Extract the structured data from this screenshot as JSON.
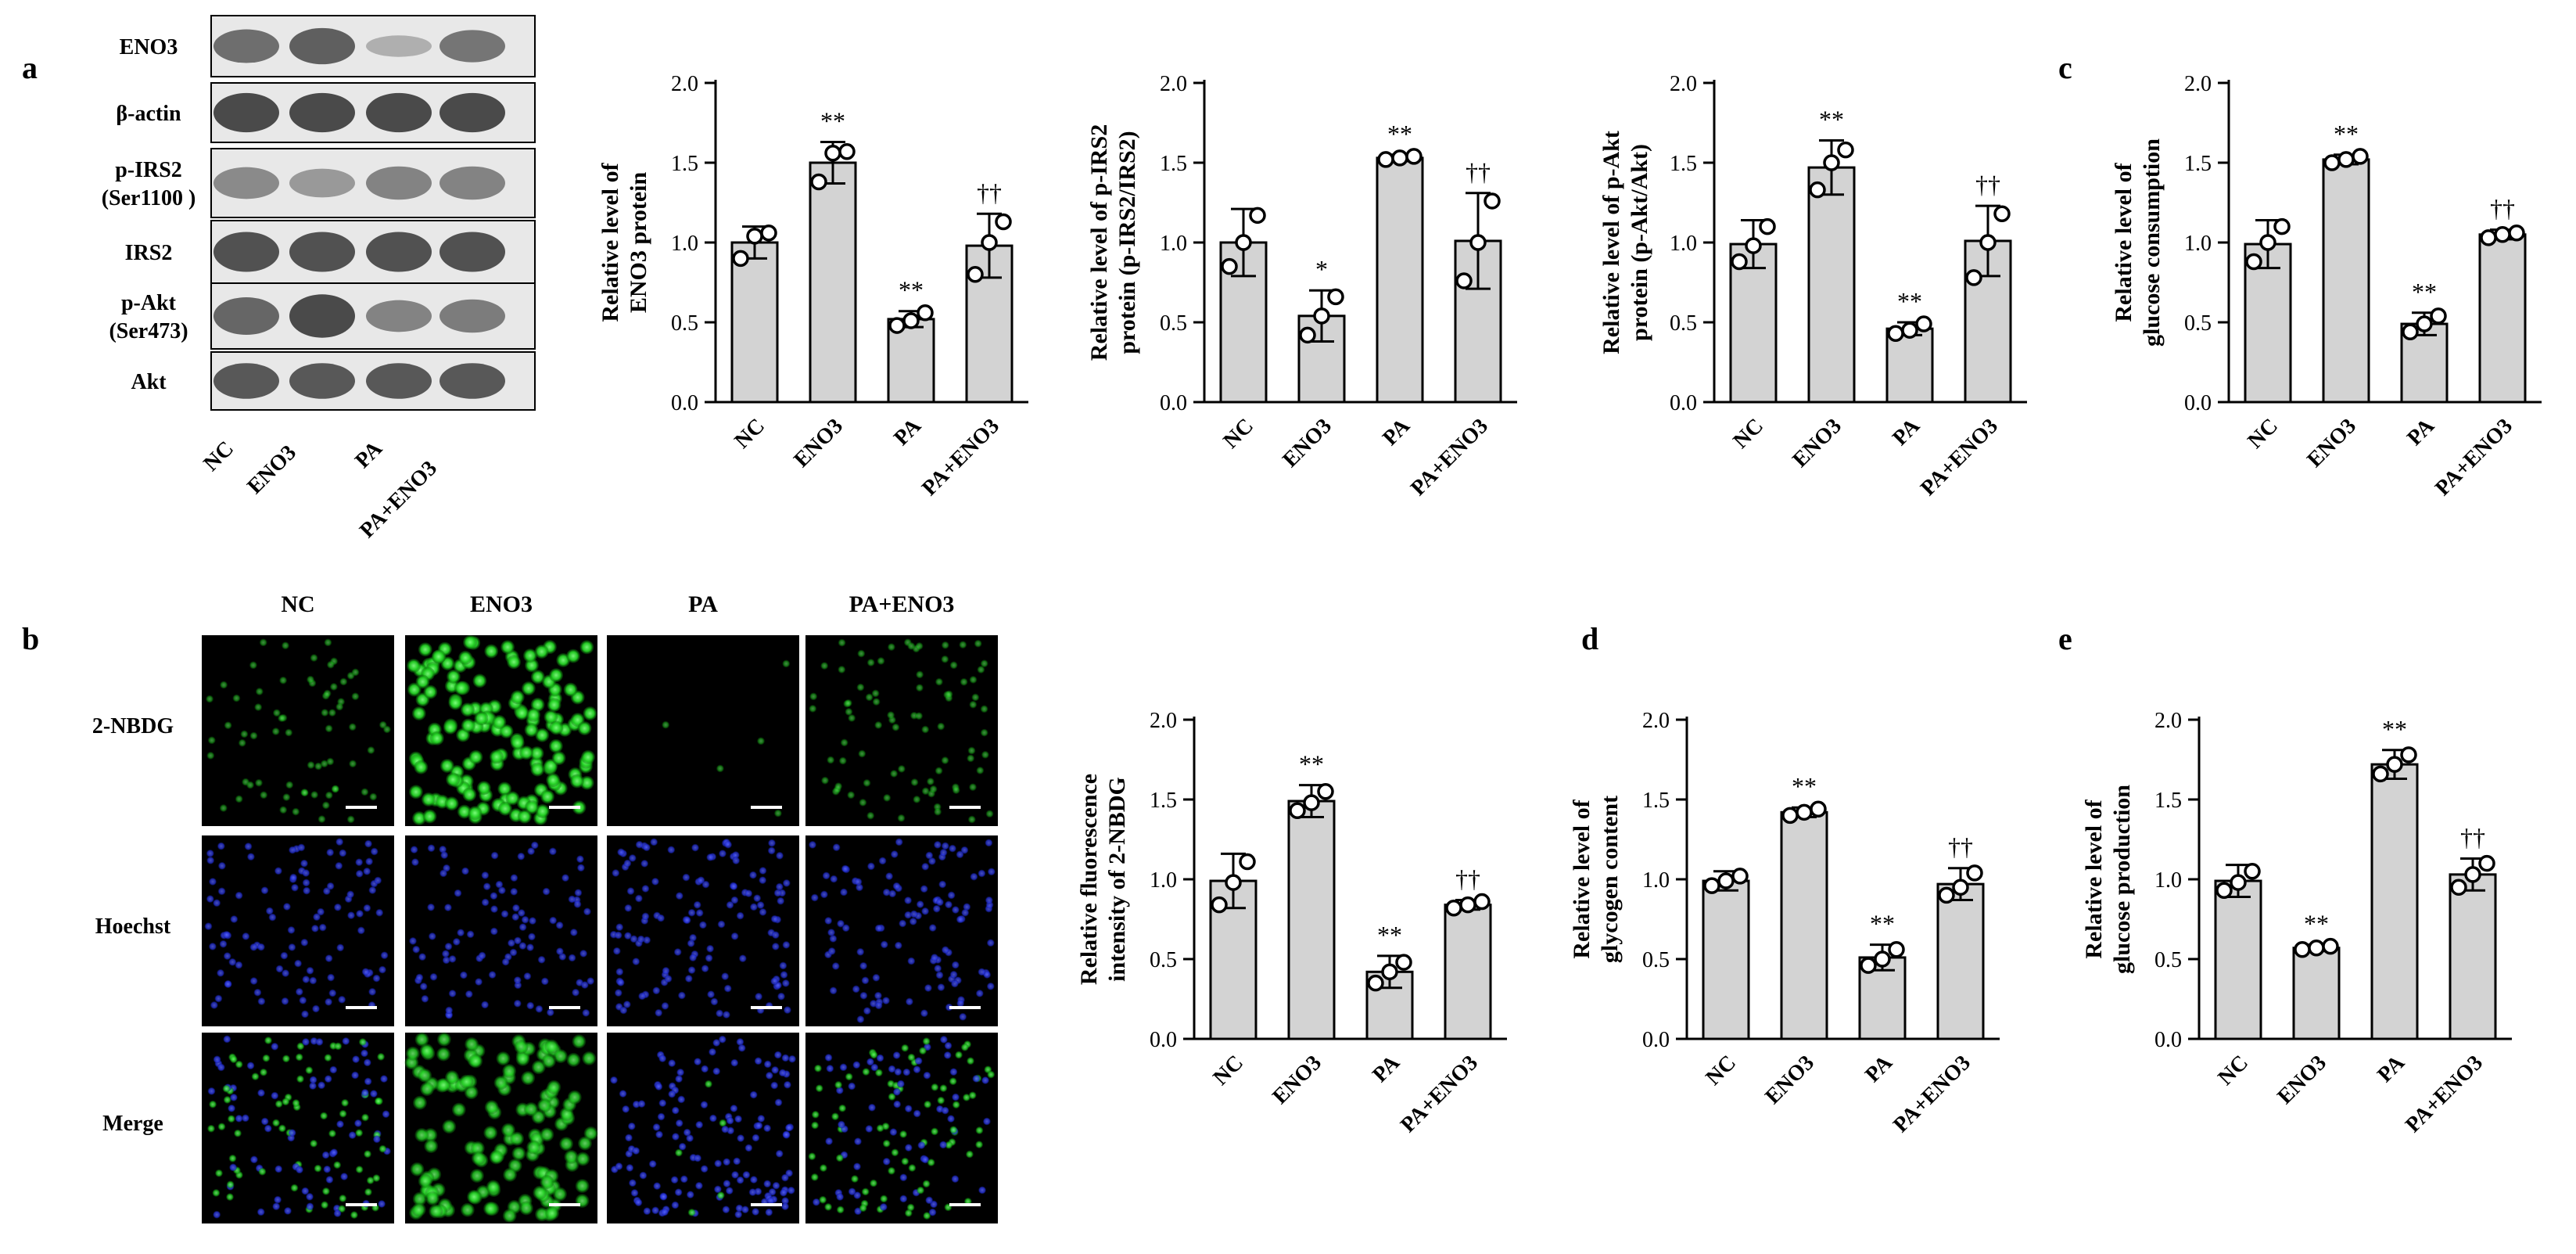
{
  "panel_letters": [
    "a",
    "b",
    "c",
    "d",
    "e"
  ],
  "western_blot": {
    "rows": [
      "ENO3",
      "β-actin",
      "p-IRS2\n(Ser1100 )",
      "IRS2",
      "p-Akt\n(Ser473)",
      "Akt"
    ],
    "lanes": [
      "NC",
      "ENO3",
      "PA",
      "PA+ENO3"
    ]
  },
  "microscopy": {
    "columns": [
      "NC",
      "ENO3",
      "PA",
      "PA+ENO3"
    ],
    "rows": [
      "2-NBDG",
      "Hoechst",
      "Merge"
    ]
  },
  "colors": {
    "bar_fill": "#d3d3d3",
    "stroke": "#000000",
    "green_channel": "#2fd62f",
    "blue_channel": "#2a3cf0"
  },
  "chart_data": [
    {
      "id": "eno3",
      "type": "bar",
      "categories": [
        "NC",
        "ENO3",
        "PA",
        "PA+ENO3"
      ],
      "values": [
        1.0,
        1.5,
        0.52,
        0.98
      ],
      "errors": [
        0.1,
        0.13,
        0.05,
        0.2
      ],
      "points": [
        [
          0.9,
          1.04,
          1.06
        ],
        [
          1.38,
          1.56,
          1.57
        ],
        [
          0.48,
          0.51,
          0.56
        ],
        [
          0.8,
          1.0,
          1.13
        ]
      ],
      "significance": [
        "",
        "**",
        "**",
        "††"
      ],
      "ylabel": "Relative level of\nENO3 protein",
      "ylim": [
        0,
        2.0
      ],
      "yticks": [
        "0.0",
        "0.5",
        "1.0",
        "1.5",
        "2.0"
      ]
    },
    {
      "id": "pirs2",
      "type": "bar",
      "categories": [
        "NC",
        "ENO3",
        "PA",
        "PA+ENO3"
      ],
      "values": [
        1.0,
        0.54,
        1.53,
        1.01
      ],
      "errors": [
        0.21,
        0.16,
        0.02,
        0.3
      ],
      "points": [
        [
          0.85,
          1.0,
          1.17
        ],
        [
          0.42,
          0.54,
          0.66
        ],
        [
          1.52,
          1.53,
          1.54
        ],
        [
          0.76,
          1.0,
          1.26
        ]
      ],
      "significance": [
        "",
        "*",
        "**",
        "††"
      ],
      "ylabel": "Relative level of p-IRS2\nprotein (p-IRS2/IRS2)",
      "ylim": [
        0,
        2.0
      ],
      "yticks": [
        "0.0",
        "0.5",
        "1.0",
        "1.5",
        "2.0"
      ]
    },
    {
      "id": "pakt",
      "type": "bar",
      "categories": [
        "NC",
        "ENO3",
        "PA",
        "PA+ENO3"
      ],
      "values": [
        0.99,
        1.47,
        0.46,
        1.01
      ],
      "errors": [
        0.15,
        0.17,
        0.04,
        0.22
      ],
      "points": [
        [
          0.88,
          0.98,
          1.1
        ],
        [
          1.33,
          1.5,
          1.58
        ],
        [
          0.43,
          0.45,
          0.49
        ],
        [
          0.78,
          1.0,
          1.18
        ]
      ],
      "significance": [
        "",
        "**",
        "**",
        "††"
      ],
      "ylabel": "Relative level of p-Akt\nprotein (p-Akt/Akt)",
      "ylim": [
        0,
        2.0
      ],
      "yticks": [
        "0.0",
        "0.5",
        "1.0",
        "1.5",
        "2.0"
      ]
    },
    {
      "id": "glucose-consumption",
      "type": "bar",
      "categories": [
        "NC",
        "ENO3",
        "PA",
        "PA+ENO3"
      ],
      "values": [
        0.99,
        1.52,
        0.49,
        1.05
      ],
      "errors": [
        0.15,
        0.03,
        0.07,
        0.03
      ],
      "points": [
        [
          0.88,
          1.0,
          1.1
        ],
        [
          1.5,
          1.52,
          1.54
        ],
        [
          0.44,
          0.49,
          0.54
        ],
        [
          1.03,
          1.05,
          1.06
        ]
      ],
      "significance": [
        "",
        "**",
        "**",
        "††"
      ],
      "ylabel": "Relative level of\nglucose consumption",
      "ylim": [
        0,
        2.0
      ],
      "yticks": [
        "0.0",
        "0.5",
        "1.0",
        "1.5",
        "2.0"
      ]
    },
    {
      "id": "nbdg",
      "type": "bar",
      "categories": [
        "NC",
        "ENO3",
        "PA",
        "PA+ENO3"
      ],
      "values": [
        0.99,
        1.49,
        0.42,
        0.84
      ],
      "errors": [
        0.17,
        0.1,
        0.1,
        0.03
      ],
      "points": [
        [
          0.84,
          0.98,
          1.11
        ],
        [
          1.43,
          1.48,
          1.55
        ],
        [
          0.35,
          0.42,
          0.48
        ],
        [
          0.82,
          0.84,
          0.86
        ]
      ],
      "significance": [
        "",
        "**",
        "**",
        "††"
      ],
      "ylabel": "Relative fluorescence\nintensity of 2-NBDG",
      "ylim": [
        0,
        2.0
      ],
      "yticks": [
        "0.0",
        "0.5",
        "1.0",
        "1.5",
        "2.0"
      ]
    },
    {
      "id": "glycogen",
      "type": "bar",
      "categories": [
        "NC",
        "ENO3",
        "PA",
        "PA+ENO3"
      ],
      "values": [
        0.99,
        1.42,
        0.51,
        0.97
      ],
      "errors": [
        0.06,
        0.03,
        0.08,
        0.1
      ],
      "points": [
        [
          0.96,
          0.99,
          1.02
        ],
        [
          1.4,
          1.42,
          1.44
        ],
        [
          0.46,
          0.5,
          0.56
        ],
        [
          0.9,
          0.95,
          1.04
        ]
      ],
      "significance": [
        "",
        "**",
        "**",
        "††"
      ],
      "ylabel": "Relative level of\nglycogen content",
      "ylim": [
        0,
        2.0
      ],
      "yticks": [
        "0.0",
        "0.5",
        "1.0",
        "1.5",
        "2.0"
      ]
    },
    {
      "id": "glucose-production",
      "type": "bar",
      "categories": [
        "NC",
        "ENO3",
        "PA",
        "PA+ENO3"
      ],
      "values": [
        0.99,
        0.57,
        1.72,
        1.03
      ],
      "errors": [
        0.1,
        0.02,
        0.09,
        0.1
      ],
      "points": [
        [
          0.93,
          0.98,
          1.05
        ],
        [
          0.56,
          0.57,
          0.58
        ],
        [
          1.66,
          1.72,
          1.78
        ],
        [
          0.95,
          1.03,
          1.1
        ]
      ],
      "significance": [
        "",
        "**",
        "**",
        "††"
      ],
      "ylabel": "Relative level of\nglucose production",
      "ylim": [
        0,
        2.0
      ],
      "yticks": [
        "0.0",
        "0.5",
        "1.0",
        "1.5",
        "2.0"
      ]
    }
  ]
}
